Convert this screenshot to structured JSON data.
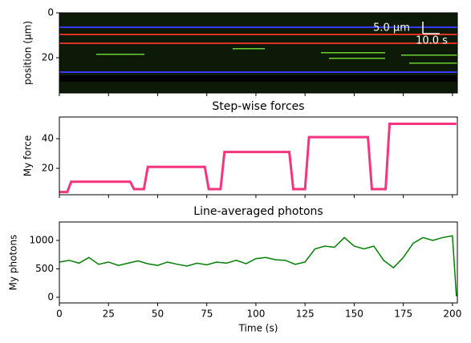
{
  "chart_data": [
    {
      "type": "image",
      "ylabel": "position (µm)",
      "ylim": [
        35.7,
        0
      ],
      "yticks": [
        0,
        20
      ],
      "xlim": [
        0,
        202.5
      ],
      "xticks": [
        0,
        25,
        50,
        75,
        100,
        125,
        150,
        175,
        200
      ],
      "annotations": [
        "5.0 µm",
        "10.0 s"
      ]
    },
    {
      "type": "line",
      "title": "Step-wise forces",
      "ylabel": "My force",
      "ylim": [
        2.2,
        54.6
      ],
      "yticks": [
        20,
        40
      ],
      "xlim": [
        0,
        202.5
      ],
      "xticks": [
        0,
        25,
        50,
        75,
        100,
        125,
        150,
        175,
        200
      ],
      "x": [
        0,
        4,
        6,
        36,
        38,
        43,
        45,
        74,
        76,
        82,
        84,
        117,
        119,
        125,
        127,
        157,
        159,
        166,
        168,
        202
      ],
      "series": [
        {
          "color": "#f5347f",
          "values": [
            4,
            4,
            11,
            11,
            6,
            6,
            21,
            21,
            6,
            6,
            31,
            31,
            6,
            6,
            41,
            41,
            6,
            6,
            50,
            50
          ]
        }
      ]
    },
    {
      "type": "line",
      "title": "Line-averaged photons",
      "ylabel": "My photons",
      "xlabel": "Time (s)",
      "ylim": [
        -99,
        1324
      ],
      "yticks": [
        0,
        500,
        1000
      ],
      "xlim": [
        0,
        202.5
      ],
      "xticks": [
        0,
        25,
        50,
        75,
        100,
        125,
        150,
        175,
        200
      ],
      "x": [
        0,
        5,
        10,
        15,
        20,
        25,
        30,
        35,
        40,
        45,
        50,
        55,
        60,
        65,
        70,
        75,
        80,
        85,
        90,
        95,
        100,
        105,
        110,
        115,
        120,
        125,
        130,
        135,
        140,
        145,
        150,
        155,
        160,
        165,
        170,
        175,
        180,
        185,
        190,
        195,
        200,
        202
      ],
      "series": [
        {
          "color": "#008000",
          "values": [
            620,
            650,
            600,
            700,
            580,
            620,
            560,
            600,
            640,
            590,
            560,
            620,
            580,
            550,
            600,
            570,
            620,
            600,
            650,
            590,
            680,
            700,
            660,
            650,
            580,
            620,
            850,
            900,
            880,
            1050,
            900,
            850,
            900,
            650,
            520,
            700,
            950,
            1050,
            1000,
            1050,
            1080,
            20
          ]
        }
      ]
    }
  ]
}
